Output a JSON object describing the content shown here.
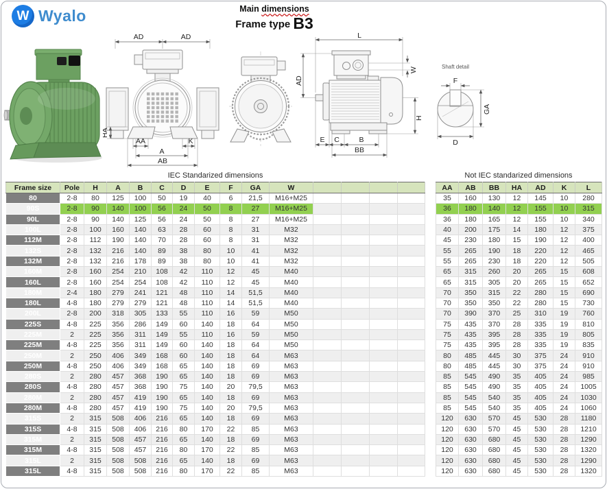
{
  "brand": {
    "name": "Wyalo",
    "monogram": "W"
  },
  "header": {
    "title": "Main dimensions",
    "title_word1": "Main",
    "title_word2": "dimensions",
    "subtitle_prefix": "Frame type",
    "frame_type": "B3"
  },
  "diagram": {
    "fan_view": {
      "ad_left": "AD",
      "ad_right": "AD",
      "ha": "HA",
      "aa": "AA",
      "k": "K",
      "a": "A",
      "ab": "AB"
    },
    "side_view": {
      "l": "L",
      "w": "W",
      "ad": "AD",
      "h": "H",
      "e": "E",
      "c": "C",
      "b": "B",
      "bb": "BB"
    },
    "shaft_detail": {
      "title": "Shaft detail",
      "f": "F",
      "ga": "GA",
      "d": "D"
    }
  },
  "tables": {
    "iec": {
      "title": "IEC Standarized dimensions",
      "columns": [
        "Frame size",
        "Pole",
        "H",
        "A",
        "B",
        "C",
        "D",
        "E",
        "F",
        "GA",
        "W"
      ],
      "extra_empty_cols": 4,
      "frame_col": true,
      "highlight_row": 1,
      "rows": [
        [
          "80",
          "2-8",
          "80",
          "125",
          "100",
          "50",
          "19",
          "40",
          "6",
          "21,5",
          "M16+M25"
        ],
        [
          "90S",
          "2-8",
          "90",
          "140",
          "100",
          "56",
          "24",
          "50",
          "8",
          "27",
          "M16+M25"
        ],
        [
          "90L",
          "2-8",
          "90",
          "140",
          "125",
          "56",
          "24",
          "50",
          "8",
          "27",
          "M16+M25"
        ],
        [
          "100L",
          "2-8",
          "100",
          "160",
          "140",
          "63",
          "28",
          "60",
          "8",
          "31",
          "M32"
        ],
        [
          "112M",
          "2-8",
          "112",
          "190",
          "140",
          "70",
          "28",
          "60",
          "8",
          "31",
          "M32"
        ],
        [
          "132S",
          "2-8",
          "132",
          "216",
          "140",
          "89",
          "38",
          "80",
          "10",
          "41",
          "M32"
        ],
        [
          "132M",
          "2-8",
          "132",
          "216",
          "178",
          "89",
          "38",
          "80",
          "10",
          "41",
          "M32"
        ],
        [
          "160M",
          "2-8",
          "160",
          "254",
          "210",
          "108",
          "42",
          "110",
          "12",
          "45",
          "M40"
        ],
        [
          "160L",
          "2-8",
          "160",
          "254",
          "254",
          "108",
          "42",
          "110",
          "12",
          "45",
          "M40"
        ],
        [
          "180M",
          "2-4",
          "180",
          "279",
          "241",
          "121",
          "48",
          "110",
          "14",
          "51,5",
          "M40"
        ],
        [
          "180L",
          "4-8",
          "180",
          "279",
          "279",
          "121",
          "48",
          "110",
          "14",
          "51,5",
          "M40"
        ],
        [
          "200L",
          "2-8",
          "200",
          "318",
          "305",
          "133",
          "55",
          "110",
          "16",
          "59",
          "M50"
        ],
        [
          "225S",
          "4-8",
          "225",
          "356",
          "286",
          "149",
          "60",
          "140",
          "18",
          "64",
          "M50"
        ],
        [
          "225M",
          "2",
          "225",
          "356",
          "311",
          "149",
          "55",
          "110",
          "16",
          "59",
          "M50"
        ],
        [
          "225M",
          "4-8",
          "225",
          "356",
          "311",
          "149",
          "60",
          "140",
          "18",
          "64",
          "M50"
        ],
        [
          "250M",
          "2",
          "250",
          "406",
          "349",
          "168",
          "60",
          "140",
          "18",
          "64",
          "M63"
        ],
        [
          "250M",
          "4-8",
          "250",
          "406",
          "349",
          "168",
          "65",
          "140",
          "18",
          "69",
          "M63"
        ],
        [
          "280S",
          "2",
          "280",
          "457",
          "368",
          "190",
          "65",
          "140",
          "18",
          "69",
          "M63"
        ],
        [
          "280S",
          "4-8",
          "280",
          "457",
          "368",
          "190",
          "75",
          "140",
          "20",
          "79,5",
          "M63"
        ],
        [
          "280M",
          "2",
          "280",
          "457",
          "419",
          "190",
          "65",
          "140",
          "18",
          "69",
          "M63"
        ],
        [
          "280M",
          "4-8",
          "280",
          "457",
          "419",
          "190",
          "75",
          "140",
          "20",
          "79,5",
          "M63"
        ],
        [
          "315S",
          "2",
          "315",
          "508",
          "406",
          "216",
          "65",
          "140",
          "18",
          "69",
          "M63"
        ],
        [
          "315S",
          "4-8",
          "315",
          "508",
          "406",
          "216",
          "80",
          "170",
          "22",
          "85",
          "M63"
        ],
        [
          "315M",
          "2",
          "315",
          "508",
          "457",
          "216",
          "65",
          "140",
          "18",
          "69",
          "M63"
        ],
        [
          "315M",
          "4-8",
          "315",
          "508",
          "457",
          "216",
          "80",
          "170",
          "22",
          "85",
          "M63"
        ],
        [
          "315L",
          "2",
          "315",
          "508",
          "508",
          "216",
          "65",
          "140",
          "18",
          "69",
          "M63"
        ],
        [
          "315L",
          "4-8",
          "315",
          "508",
          "508",
          "216",
          "80",
          "170",
          "22",
          "85",
          "M63"
        ]
      ]
    },
    "not_iec": {
      "title": "Not IEC standarized dimensions",
      "columns": [
        "AA",
        "AB",
        "BB",
        "HA",
        "AD",
        "K",
        "L"
      ],
      "extra_empty_cols": 0,
      "frame_col": false,
      "highlight_row": 1,
      "rows": [
        [
          "35",
          "160",
          "130",
          "12",
          "145",
          "10",
          "280"
        ],
        [
          "36",
          "180",
          "140",
          "12",
          "155",
          "10",
          "315"
        ],
        [
          "36",
          "180",
          "165",
          "12",
          "155",
          "10",
          "340"
        ],
        [
          "40",
          "200",
          "175",
          "14",
          "180",
          "12",
          "375"
        ],
        [
          "45",
          "230",
          "180",
          "15",
          "190",
          "12",
          "400"
        ],
        [
          "55",
          "265",
          "190",
          "18",
          "220",
          "12",
          "465"
        ],
        [
          "55",
          "265",
          "230",
          "18",
          "220",
          "12",
          "505"
        ],
        [
          "65",
          "315",
          "260",
          "20",
          "265",
          "15",
          "608"
        ],
        [
          "65",
          "315",
          "305",
          "20",
          "265",
          "15",
          "652"
        ],
        [
          "70",
          "350",
          "315",
          "22",
          "280",
          "15",
          "690"
        ],
        [
          "70",
          "350",
          "350",
          "22",
          "280",
          "15",
          "730"
        ],
        [
          "70",
          "390",
          "370",
          "25",
          "310",
          "19",
          "760"
        ],
        [
          "75",
          "435",
          "370",
          "28",
          "335",
          "19",
          "810"
        ],
        [
          "75",
          "435",
          "395",
          "28",
          "335",
          "19",
          "805"
        ],
        [
          "75",
          "435",
          "395",
          "28",
          "335",
          "19",
          "835"
        ],
        [
          "80",
          "485",
          "445",
          "30",
          "375",
          "24",
          "910"
        ],
        [
          "80",
          "485",
          "445",
          "30",
          "375",
          "24",
          "910"
        ],
        [
          "85",
          "545",
          "490",
          "35",
          "405",
          "24",
          "985"
        ],
        [
          "85",
          "545",
          "490",
          "35",
          "405",
          "24",
          "1005"
        ],
        [
          "85",
          "545",
          "540",
          "35",
          "405",
          "24",
          "1030"
        ],
        [
          "85",
          "545",
          "540",
          "35",
          "405",
          "24",
          "1060"
        ],
        [
          "120",
          "630",
          "570",
          "45",
          "530",
          "28",
          "1180"
        ],
        [
          "120",
          "630",
          "570",
          "45",
          "530",
          "28",
          "1210"
        ],
        [
          "120",
          "630",
          "680",
          "45",
          "530",
          "28",
          "1290"
        ],
        [
          "120",
          "630",
          "680",
          "45",
          "530",
          "28",
          "1320"
        ],
        [
          "120",
          "630",
          "680",
          "45",
          "530",
          "28",
          "1290"
        ],
        [
          "120",
          "630",
          "680",
          "45",
          "530",
          "28",
          "1320"
        ]
      ]
    }
  },
  "colors": {
    "highlight_green": "#92d050",
    "header_green": "#d6e4bc",
    "frame_gray": "#7f7f7f",
    "accent_blue": "#2e86de",
    "underline_red": "#cc2222"
  }
}
